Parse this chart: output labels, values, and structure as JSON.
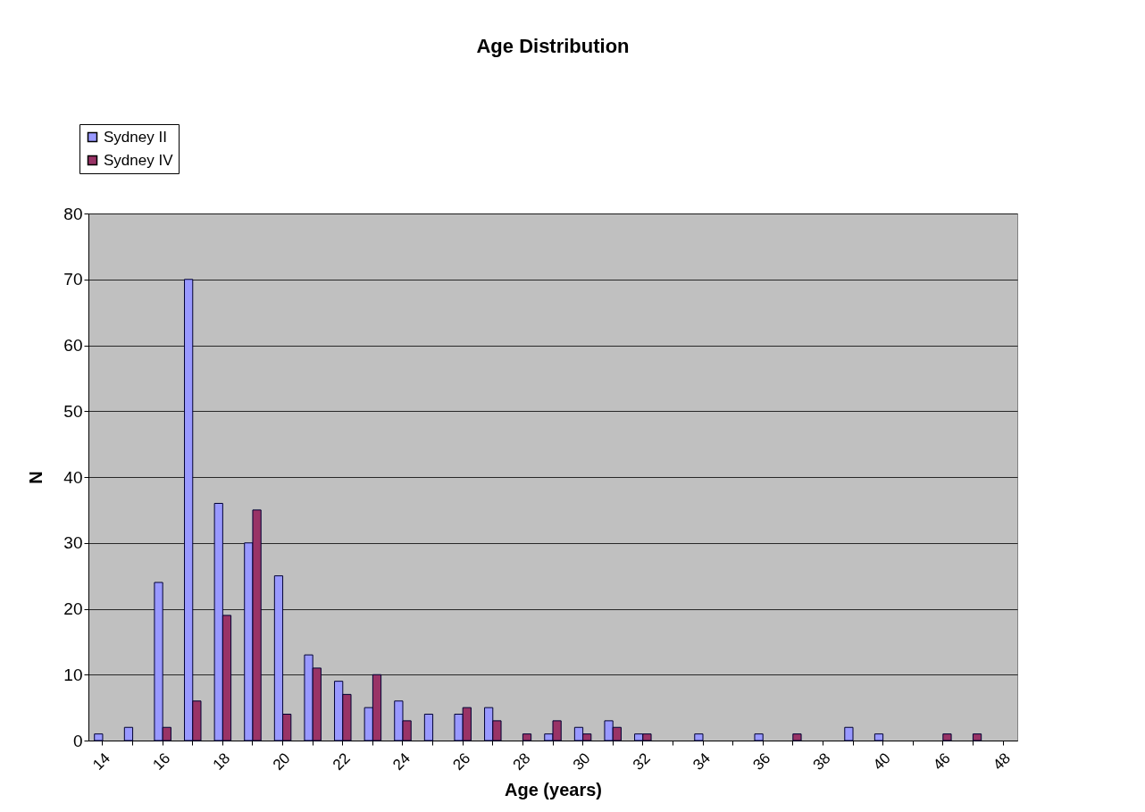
{
  "chart_data": {
    "type": "bar",
    "title": "Age Distribution",
    "xlabel": "Age (years)",
    "ylabel": "N",
    "categories": [
      "14",
      null,
      "16",
      null,
      "18",
      null,
      "20",
      null,
      "22",
      null,
      "24",
      null,
      "26",
      null,
      "28",
      null,
      "30",
      null,
      "32",
      null,
      "34",
      null,
      "36",
      null,
      "38",
      null,
      "40",
      null,
      "46",
      null,
      "48"
    ],
    "series": [
      {
        "name": "Sydney II",
        "color": "#9999ff",
        "values": [
          1,
          2,
          24,
          70,
          36,
          30,
          25,
          13,
          9,
          5,
          6,
          4,
          4,
          5,
          null,
          1,
          2,
          3,
          1,
          null,
          1,
          null,
          1,
          null,
          null,
          2,
          1,
          null,
          null,
          null,
          null
        ]
      },
      {
        "name": "Sydney IV",
        "color": "#993366",
        "values": [
          null,
          null,
          2,
          6,
          19,
          35,
          4,
          11,
          7,
          10,
          3,
          null,
          5,
          3,
          1,
          3,
          1,
          2,
          1,
          null,
          null,
          null,
          null,
          1,
          null,
          null,
          null,
          null,
          1,
          1,
          null
        ]
      }
    ],
    "ylim": [
      0,
      80
    ],
    "yticks": [
      0,
      10,
      20,
      30,
      40,
      50,
      60,
      70,
      80
    ],
    "grid": "y",
    "legend": "top left"
  }
}
